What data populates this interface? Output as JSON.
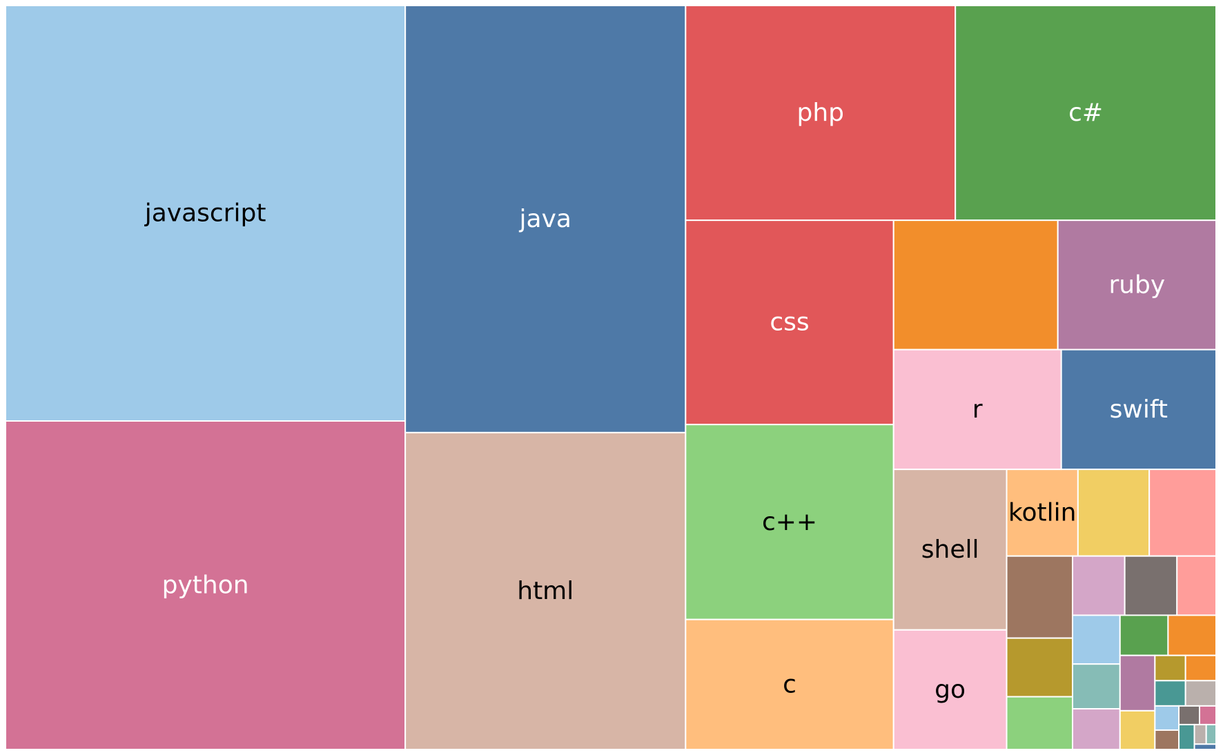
{
  "chart_data": {
    "type": "treemap",
    "title": "",
    "tiles": [
      {
        "name": "javascript",
        "value": 43,
        "color": "#9ecae9",
        "label_color": "#000000"
      },
      {
        "name": "python",
        "value": 34,
        "color": "#d37295",
        "label_color": "#ffffff"
      },
      {
        "name": "java",
        "value": 31,
        "color": "#4e79a7",
        "label_color": "#ffffff"
      },
      {
        "name": "html",
        "value": 23,
        "color": "#d7b5a6",
        "label_color": "#000000"
      },
      {
        "name": "php",
        "value": 15,
        "color": "#e15759",
        "label_color": "#ffffff"
      },
      {
        "name": "c#",
        "value": 14.5,
        "color": "#59a14f",
        "label_color": "#ffffff"
      },
      {
        "name": "css",
        "value": 11,
        "color": "#e15759",
        "label_color": "#ffffff"
      },
      {
        "name": "c++",
        "value": 10.5,
        "color": "#8cd17d",
        "label_color": "#000000"
      },
      {
        "name": "c",
        "value": 7,
        "color": "#ffbe7d",
        "label_color": "#000000"
      },
      {
        "name": "",
        "value": 5.5,
        "color": "#f28e2b",
        "label_color": "#000000"
      },
      {
        "name": "ruby",
        "value": 5.3,
        "color": "#b07aa1",
        "label_color": "#ffffff"
      },
      {
        "name": "r",
        "value": 5.2,
        "color": "#fabfd2",
        "label_color": "#000000"
      },
      {
        "name": "swift",
        "value": 4.8,
        "color": "#4e79a7",
        "label_color": "#ffffff"
      },
      {
        "name": "shell",
        "value": 4.7,
        "color": "#d7b5a6",
        "label_color": "#000000"
      },
      {
        "name": "go",
        "value": 3.5,
        "color": "#fabfd2",
        "label_color": "#000000"
      },
      {
        "name": "kotlin",
        "value": 1.6,
        "color": "#ffbe7d",
        "label_color": "#000000"
      },
      {
        "name": "",
        "value": 1.6,
        "color": "#f1ce63",
        "label_color": "#000000"
      },
      {
        "name": "",
        "value": 1.5,
        "color": "#ff9d9a",
        "label_color": "#000000"
      },
      {
        "name": "",
        "value": 1.4,
        "color": "#9d7660",
        "label_color": "#000000"
      },
      {
        "name": "",
        "value": 1.0,
        "color": "#b6992d",
        "label_color": "#000000"
      },
      {
        "name": "",
        "value": 0.9,
        "color": "#8cd17d",
        "label_color": "#000000"
      },
      {
        "name": "",
        "value": 0.8,
        "color": "#d4a6c8",
        "label_color": "#000000"
      },
      {
        "name": "",
        "value": 0.8,
        "color": "#79706e",
        "label_color": "#000000"
      },
      {
        "name": "",
        "value": 0.6,
        "color": "#ff9d9a",
        "label_color": "#000000"
      },
      {
        "name": "",
        "value": 0.6,
        "color": "#9ecae9",
        "label_color": "#000000"
      },
      {
        "name": "",
        "value": 0.55,
        "color": "#86bcb6",
        "label_color": "#000000"
      },
      {
        "name": "",
        "value": 0.5,
        "color": "#d4a6c8",
        "label_color": "#000000"
      },
      {
        "name": "",
        "value": 0.5,
        "color": "#59a14f",
        "label_color": "#000000"
      },
      {
        "name": "",
        "value": 0.5,
        "color": "#f28e2b",
        "label_color": "#000000"
      },
      {
        "name": "",
        "value": 0.5,
        "color": "#b07aa1",
        "label_color": "#000000"
      },
      {
        "name": "",
        "value": 0.35,
        "color": "#f1ce63",
        "label_color": "#000000"
      },
      {
        "name": "",
        "value": 0.2,
        "color": "#b6992d",
        "label_color": "#000000"
      },
      {
        "name": "",
        "value": 0.2,
        "color": "#f28e2b",
        "label_color": "#000000"
      },
      {
        "name": "",
        "value": 0.2,
        "color": "#499894",
        "label_color": "#000000"
      },
      {
        "name": "",
        "value": 0.2,
        "color": "#bab0ac",
        "label_color": "#000000"
      },
      {
        "name": "",
        "value": 0.15,
        "color": "#9ecae9",
        "label_color": "#000000"
      },
      {
        "name": "",
        "value": 0.12,
        "color": "#9d7660",
        "label_color": "#000000"
      },
      {
        "name": "",
        "value": 0.1,
        "color": "#79706e",
        "label_color": "#000000"
      },
      {
        "name": "",
        "value": 0.08,
        "color": "#d37295",
        "label_color": "#000000"
      },
      {
        "name": "",
        "value": 0.1,
        "color": "#499894",
        "label_color": "#000000"
      },
      {
        "name": "",
        "value": 0.06,
        "color": "#bab0ac",
        "label_color": "#000000"
      },
      {
        "name": "",
        "value": 0.05,
        "color": "#86bcb6",
        "label_color": "#000000"
      },
      {
        "name": "",
        "value": 0.03,
        "color": "#4e79a7",
        "label_color": "#000000"
      }
    ],
    "legend": "none",
    "grid": false
  }
}
